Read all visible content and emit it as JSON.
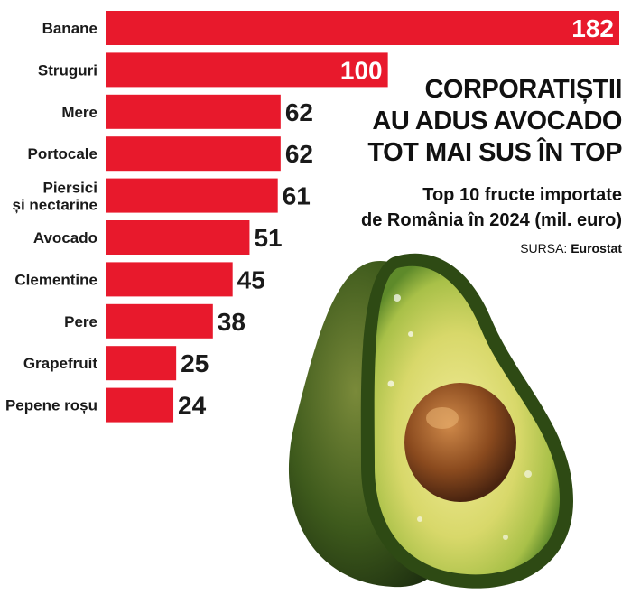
{
  "headline": {
    "line1": "CORPORATIȘTII",
    "line2": "AU ADUS AVOCADO",
    "line3": "TOT MAI SUS ÎN TOP"
  },
  "subtitle": {
    "line1": "Top 10 fructe importate",
    "line2": "de România în 2024 (mil. euro)"
  },
  "source": {
    "prefix": "SURSA:",
    "name": "Eurostat"
  },
  "colors": {
    "bar": "#e8192c",
    "text": "#1a1a1a"
  },
  "chart_data": {
    "type": "bar",
    "orientation": "horizontal",
    "categories": [
      [
        "Banane"
      ],
      [
        "Struguri"
      ],
      [
        "Mere"
      ],
      [
        "Portocale"
      ],
      [
        "Piersici",
        "și nectarine"
      ],
      [
        "Avocado"
      ],
      [
        "Clementine"
      ],
      [
        "Pere"
      ],
      [
        "Grapefruit"
      ],
      [
        "Pepene roșu"
      ]
    ],
    "values": [
      182,
      100,
      62,
      62,
      61,
      51,
      45,
      38,
      25,
      24
    ],
    "value_labels_inside_for": [
      182,
      100
    ],
    "xlim": [
      0,
      182
    ],
    "grid": false,
    "legend": "none"
  }
}
